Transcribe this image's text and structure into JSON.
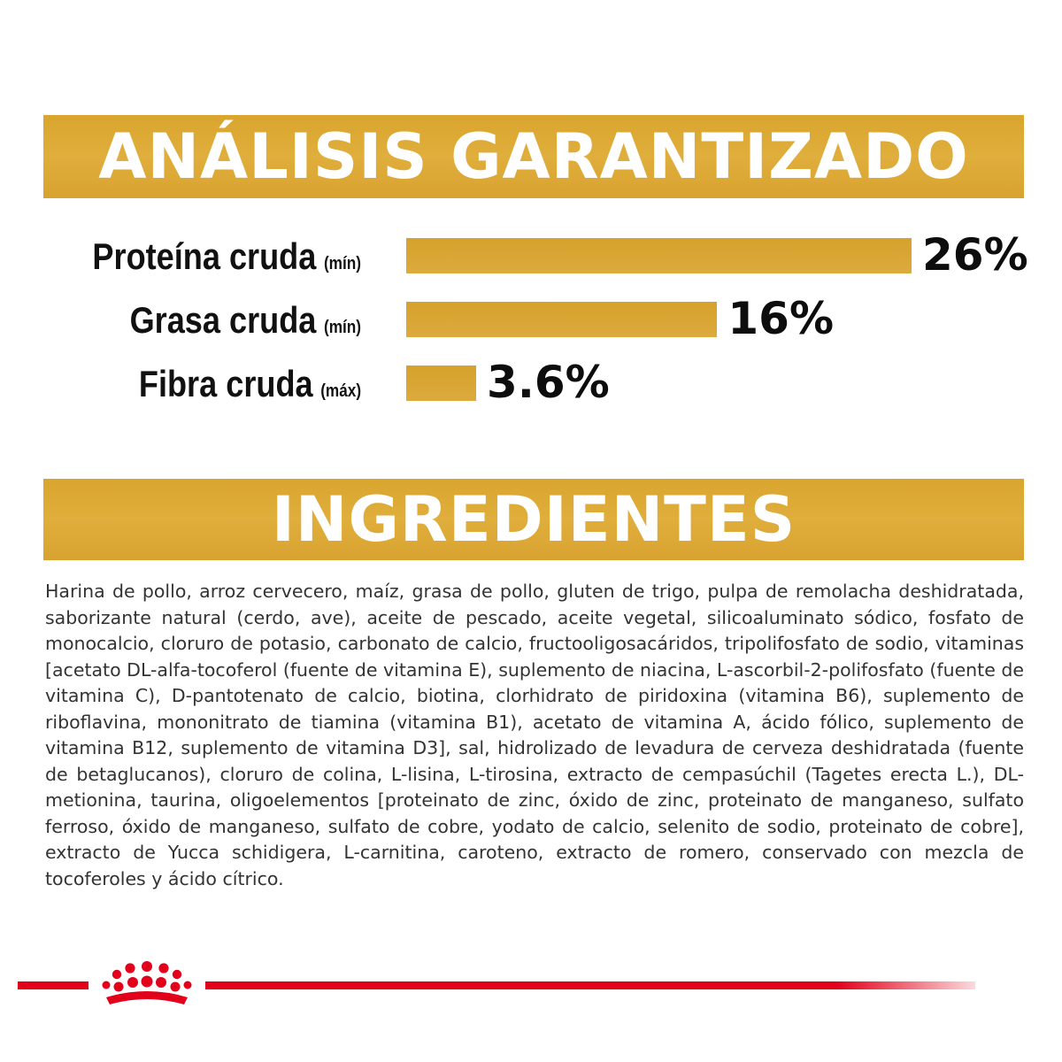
{
  "analysis": {
    "title": "ANÁLISIS GARANTIZADO",
    "bar_color": "#d9a52e",
    "items": [
      {
        "label": "Proteína cruda",
        "qualifier": "(mín)",
        "value": 26,
        "value_text": "26%"
      },
      {
        "label": "Grasa cruda",
        "qualifier": "(mín)",
        "value": 16,
        "value_text": "16%"
      },
      {
        "label": "Fibra cruda",
        "qualifier": "(máx)",
        "value": 3.6,
        "value_text": "3.6%"
      }
    ]
  },
  "ingredients": {
    "title": "INGREDIENTES",
    "text": "Harina de pollo, arroz cervecero, maíz, grasa de pollo, gluten de trigo, pulpa de remolacha deshidratada, saborizante natural (cerdo, ave), aceite de pescado, aceite vegetal, silicoaluminato sódico, fosfato de monocalcio, cloruro de potasio, carbonato de calcio, fructooligosacáridos, tripolifosfato de sodio, vitaminas [acetato DL-alfa-tocoferol (fuente de vitamina E), suplemento de niacina, L-ascorbil-2-polifosfato (fuente de vitamina C), D-pantotenato de calcio, biotina, clorhidrato de piridoxina (vitamina B6), suplemento de riboflavina, mononitrato de tiamina (vitamina B1), acetato de vitamina A, ácido fólico, suplemento de vitamina B12, suplemento de vitamina D3], sal, hidrolizado de levadura de cerveza deshidratada (fuente de betaglucanos), cloruro de colina, L-lisina, L-tirosina, extracto de cempasúchil (Tagetes erecta L.), DL-metionina, taurina, oligoelementos [proteinato de zinc, óxido de zinc, proteinato de manganeso, sulfato ferroso, óxido de manganeso, sulfato de cobre, yodato de calcio, selenito de sodio, proteinato de cobre], extracto de Yucca schidigera, L-carnitina, caroteno, extracto de romero, conservado con mezcla de tocoferoles y ácido cítrico."
  },
  "footer": {
    "logo_icon": "crown-icon",
    "brand_color": "#e2001a"
  }
}
